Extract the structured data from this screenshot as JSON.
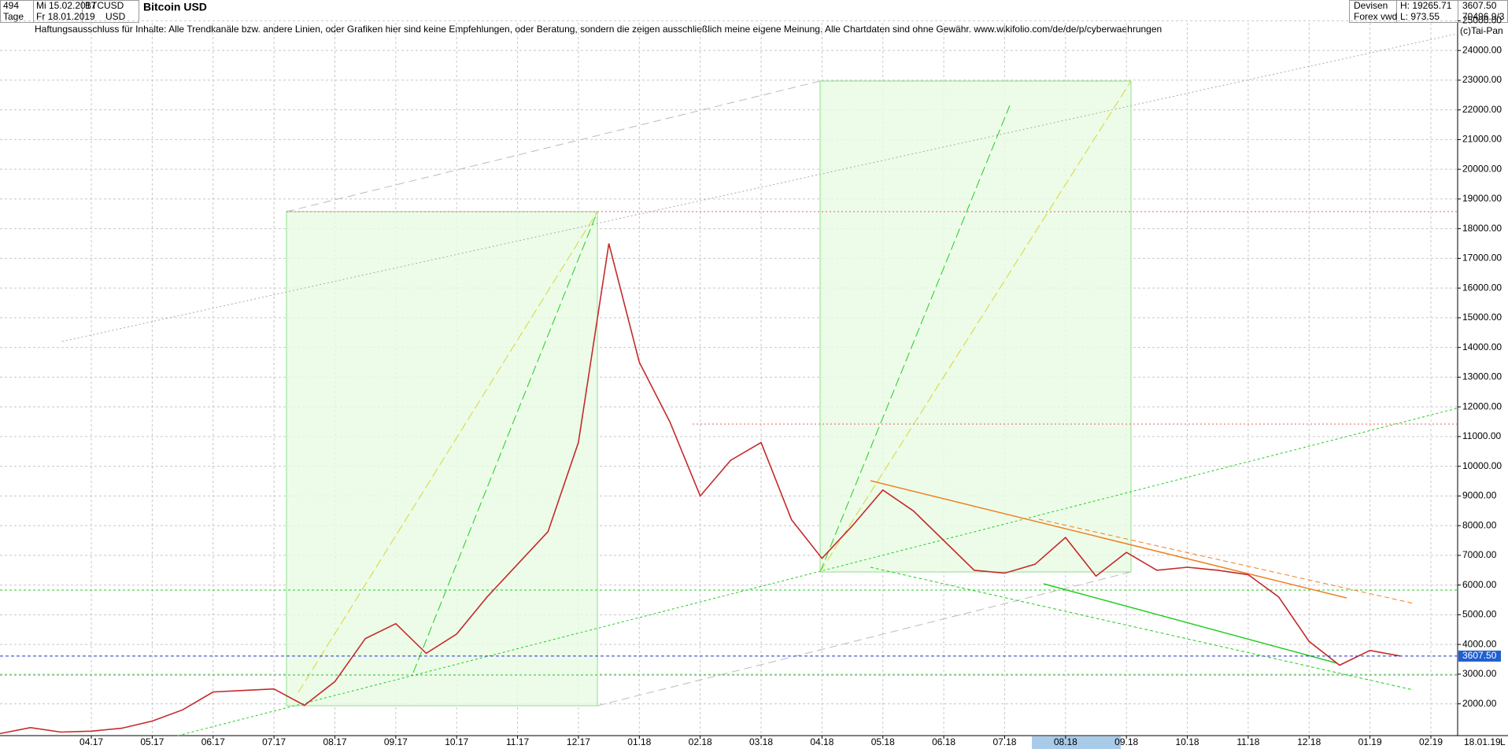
{
  "chart_data": {
    "type": "line",
    "title": "Bitcoin USD",
    "disclaimer": "Haftungsausschluss für Inhalte: Alle Trendkanäle bzw. andere Linien, oder Grafiken hier sind keine Empfehlungen, oder Beratung, sondern die zeigen ausschließlich meine eigene Meinung. Alle Chartdaten sind ohne Gewähr.  www.wikifolio.com/de/de/p/cyberwaehrungen",
    "info": {
      "count": "494",
      "period": "Tage",
      "start": "Mi 15.02.2017",
      "end": "Fr 18.01.2019",
      "symbol": "BTCUSD",
      "currency": "USD",
      "market": "Devisen",
      "source": "Forex vwd",
      "high": "H: 19265.71",
      "low": "L: 973.55",
      "volume": "70496.9/3",
      "copyright": "(c)Tai-Pan",
      "last_date": "18.01.19",
      "scale_mode": "L"
    },
    "categories": [
      null,
      null,
      null,
      "04.17",
      null,
      "05.17",
      null,
      "06.17",
      null,
      "07.17",
      null,
      "08.17",
      null,
      "09.17",
      null,
      "10.17",
      null,
      "11.17",
      null,
      "12.17",
      null,
      "01.18",
      null,
      "02.18",
      null,
      "03.18",
      null,
      "04.18",
      null,
      "05.18",
      null,
      "06.18",
      null,
      "07.18",
      null,
      "08.18",
      null,
      "09.18",
      null,
      "10.18",
      null,
      "11.18",
      null,
      "12.18",
      null,
      "01.19",
      null,
      "02.19"
    ],
    "values": [
      1000,
      1200,
      1050,
      1080,
      1180,
      1420,
      1800,
      2400,
      2450,
      2500,
      1950,
      2750,
      4200,
      4700,
      3700,
      4350,
      5600,
      6700,
      7800,
      10800,
      17500,
      13500,
      11500,
      9000,
      10200,
      10800,
      8200,
      6900,
      8000,
      9200,
      8500,
      7500,
      6500,
      6400,
      6700,
      7600,
      6300,
      7100,
      6500,
      6600,
      6500,
      6350,
      5600,
      4100,
      3300,
      3800,
      3607.5,
      null
    ],
    "color": "#c42a2a",
    "last_price": {
      "value": 3607.5,
      "label": "3607.50"
    },
    "ylim": [
      930,
      25250
    ],
    "yticks": [
      {
        "value": 2000,
        "label": "2000.00"
      },
      {
        "value": 3000,
        "label": "3000.00"
      },
      {
        "value": 4000,
        "label": "4000.00"
      },
      {
        "value": 5000,
        "label": "5000.00"
      },
      {
        "value": 6000,
        "label": "6000.00"
      },
      {
        "value": 7000,
        "label": "7000.00"
      },
      {
        "value": 8000,
        "label": "8000.00"
      },
      {
        "value": 9000,
        "label": "9000.00"
      },
      {
        "value": 10000,
        "label": "10000.00"
      },
      {
        "value": 11000,
        "label": "11000.00"
      },
      {
        "value": 12000,
        "label": "12000.00"
      },
      {
        "value": 13000,
        "label": "13000.00"
      },
      {
        "value": 14000,
        "label": "14000.00"
      },
      {
        "value": 15000,
        "label": "15000.00"
      },
      {
        "value": 16000,
        "label": "16000.00"
      },
      {
        "value": 17000,
        "label": "17000.00"
      },
      {
        "value": 18000,
        "label": "18000.00"
      },
      {
        "value": 19000,
        "label": "19000.00"
      },
      {
        "value": 20000,
        "label": "20000.00"
      },
      {
        "value": 21000,
        "label": "21000.00"
      },
      {
        "value": 22000,
        "label": "22000.00"
      },
      {
        "value": 23000,
        "label": "23000.00"
      },
      {
        "value": 24000,
        "label": "24000.00"
      },
      {
        "value": 25000,
        "label": "25000.00"
      }
    ],
    "grid": true
  }
}
